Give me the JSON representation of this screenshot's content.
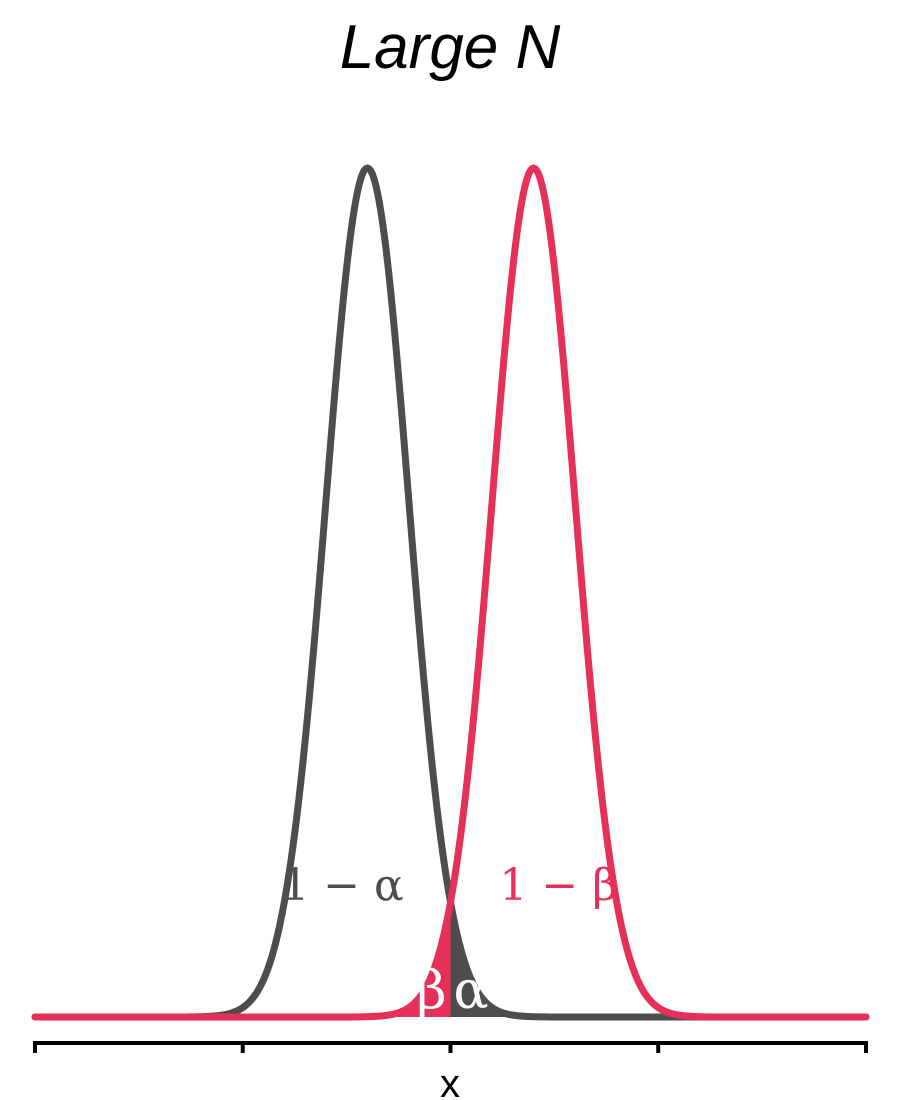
{
  "chart_data": {
    "type": "area",
    "title": "Large N",
    "xlabel": "x",
    "ylabel": "",
    "xlim": [
      -4,
      4
    ],
    "x_ticks": [
      -4,
      -2,
      0,
      2,
      4
    ],
    "critical_value": 0,
    "series": [
      {
        "role": "null-distribution",
        "mean": -0.8,
        "sd": 0.4,
        "color": "#4d4d4d",
        "region_label": "1 − α",
        "tail_label": "α",
        "tail_side": "right"
      },
      {
        "role": "alternative-distribution",
        "mean": 0.8,
        "sd": 0.4,
        "color": "#e5305a",
        "region_label": "1 − β",
        "tail_label": "β",
        "tail_side": "left"
      }
    ],
    "grid": false,
    "legend": "none"
  }
}
